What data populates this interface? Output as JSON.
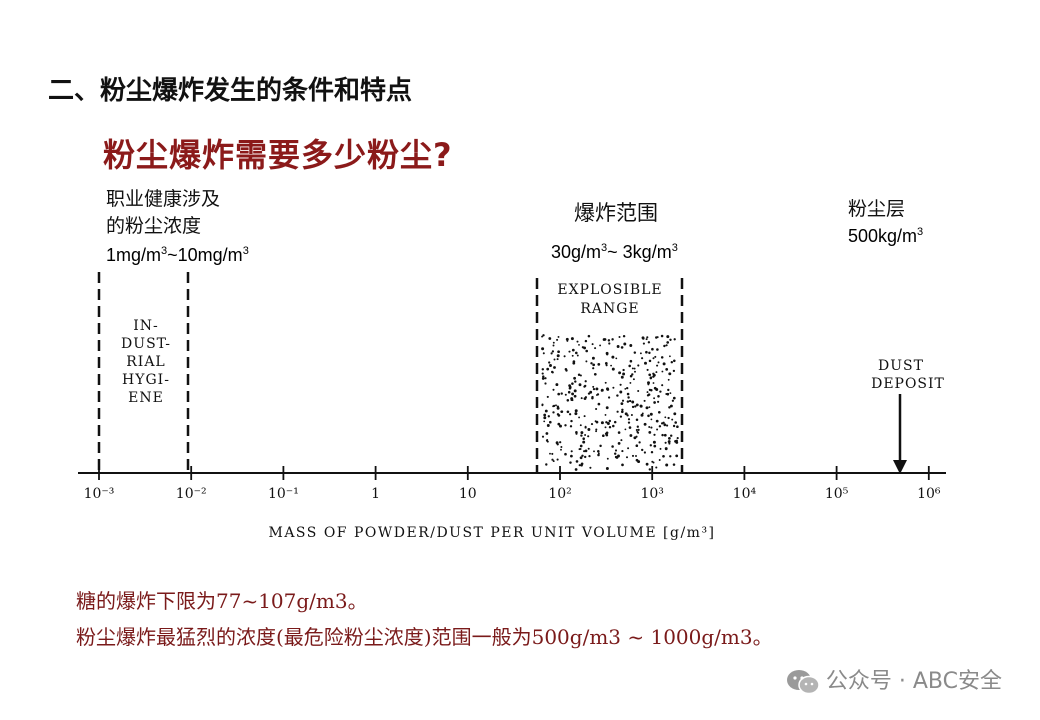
{
  "section_title": "二、粉尘爆炸发生的条件和特点",
  "question": "粉尘爆炸需要多少粉尘?",
  "industrial": {
    "label_line1": "职业健康涉及",
    "label_line2": "的粉尘浓度",
    "range_a": "1mg/m",
    "range_b": "~10mg/m",
    "sup": "3"
  },
  "explosion": {
    "label": "爆炸范围",
    "range_a": "30g/m",
    "range_b": "~ 3kg/m",
    "sup": "3"
  },
  "deposit": {
    "label": "粉尘层",
    "range_a": "500kg/m",
    "sup": "3"
  },
  "figure": {
    "industrial_text": [
      "IN-",
      "DUST-",
      "RIAL",
      "HYGI-",
      "ENE"
    ],
    "explosible_text": [
      "EXPLOSIBLE",
      "RANGE"
    ],
    "deposit_text": [
      "DUST",
      "DEPOSIT"
    ],
    "axis_title": "MASS OF POWDER/DUST PER UNIT VOLUME [g/m³]",
    "ticks": [
      {
        "label": "10⁻³",
        "exp": -3
      },
      {
        "label": "10⁻²",
        "exp": -2
      },
      {
        "label": "10⁻¹",
        "exp": -1
      },
      {
        "label": "1",
        "exp": 0
      },
      {
        "label": "10",
        "exp": 1
      },
      {
        "label": "10²",
        "exp": 2
      },
      {
        "label": "10³",
        "exp": 3
      },
      {
        "label": "10⁴",
        "exp": 4
      },
      {
        "label": "10⁵",
        "exp": 5
      },
      {
        "label": "10⁶",
        "exp": 6
      }
    ]
  },
  "notes": {
    "line1": "糖的爆炸下限为77~107g/m3。",
    "line2": "粉尘爆炸最猛烈的浓度(最危险粉尘浓度)范围一般为500g/m3 ~ 1000g/m3。"
  },
  "watermark": "公众号 · ABC安全"
}
